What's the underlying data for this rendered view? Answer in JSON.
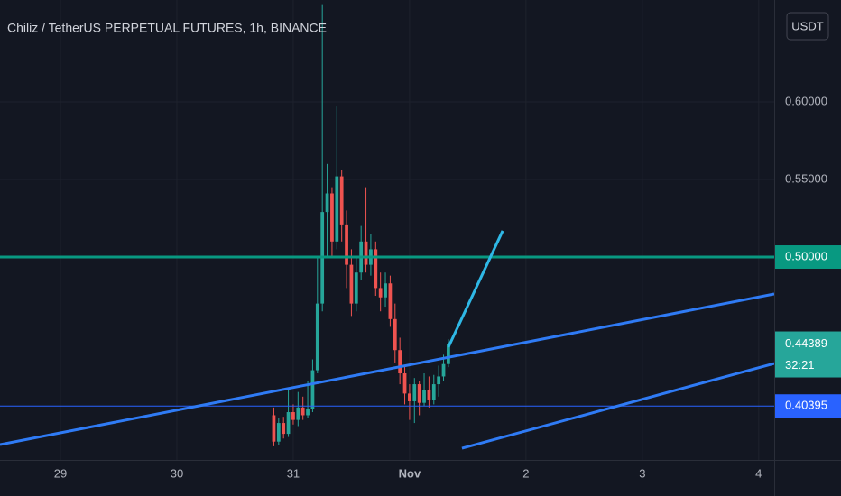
{
  "chart_data": {
    "type": "candlestick",
    "title": "Chiliz / TetherUS PERPETUAL FUTURES, 1h, BINANCE",
    "currency": "USDT",
    "x": [
      44,
      45,
      46,
      47,
      48,
      49,
      50,
      51,
      52,
      53,
      54,
      55,
      56,
      57,
      58,
      59,
      60,
      61,
      62,
      63,
      64,
      65,
      66,
      67,
      68,
      69,
      70,
      71,
      72,
      73,
      74,
      75,
      76,
      77,
      78,
      79,
      80
    ],
    "open": [
      0.398,
      0.381,
      0.393,
      0.386,
      0.4,
      0.395,
      0.403,
      0.398,
      0.402,
      0.427,
      0.47,
      0.529,
      0.541,
      0.51,
      0.552,
      0.521,
      0.495,
      0.47,
      0.49,
      0.51,
      0.495,
      0.505,
      0.48,
      0.474,
      0.483,
      0.46,
      0.44,
      0.425,
      0.412,
      0.407,
      0.418,
      0.406,
      0.414,
      0.408,
      0.418,
      0.423,
      0.431
    ],
    "high": [
      0.403,
      0.396,
      0.397,
      0.415,
      0.405,
      0.413,
      0.41,
      0.42,
      0.434,
      0.5,
      0.663,
      0.56,
      0.545,
      0.597,
      0.556,
      0.53,
      0.505,
      0.5,
      0.52,
      0.545,
      0.515,
      0.51,
      0.49,
      0.49,
      0.488,
      0.47,
      0.448,
      0.43,
      0.418,
      0.422,
      0.42,
      0.425,
      0.423,
      0.424,
      0.43,
      0.437,
      0.447
    ],
    "low": [
      0.378,
      0.379,
      0.383,
      0.384,
      0.392,
      0.391,
      0.395,
      0.396,
      0.4,
      0.425,
      0.465,
      0.5,
      0.5,
      0.505,
      0.51,
      0.48,
      0.462,
      0.465,
      0.485,
      0.49,
      0.488,
      0.475,
      0.465,
      0.468,
      0.455,
      0.432,
      0.418,
      0.405,
      0.395,
      0.393,
      0.398,
      0.404,
      0.403,
      0.405,
      0.41,
      0.42,
      0.429
    ],
    "close": [
      0.381,
      0.393,
      0.386,
      0.4,
      0.395,
      0.403,
      0.398,
      0.402,
      0.427,
      0.47,
      0.529,
      0.541,
      0.51,
      0.552,
      0.521,
      0.495,
      0.47,
      0.49,
      0.51,
      0.495,
      0.505,
      0.48,
      0.474,
      0.483,
      0.46,
      0.44,
      0.425,
      0.412,
      0.407,
      0.418,
      0.406,
      0.414,
      0.408,
      0.418,
      0.423,
      0.431,
      0.44389
    ],
    "up_color": "#26a69a",
    "down_color": "#ef5350",
    "xlim": [
      -12.47,
      147.2
    ],
    "xticks": [
      {
        "value": 0,
        "label": "29"
      },
      {
        "value": 24,
        "label": "30"
      },
      {
        "value": 48,
        "label": "31"
      },
      {
        "value": 72,
        "label": "Nov"
      },
      {
        "value": 96,
        "label": "2"
      },
      {
        "value": 120,
        "label": "3"
      },
      {
        "value": 144,
        "label": "4"
      }
    ],
    "ylim": [
      0.3692,
      0.6657
    ],
    "yticks": [
      {
        "value": 0.55,
        "label": "0.55000"
      },
      {
        "value": 0.6,
        "label": "0.60000"
      }
    ],
    "levels": [
      {
        "value": 0.5,
        "label": "0.50000",
        "color": "#089981",
        "width": 3
      },
      {
        "value": 0.40395,
        "label": "0.40395",
        "color": "#2962ff",
        "width": 1
      }
    ],
    "last_price": {
      "value": 0.44389,
      "label": "0.44389",
      "countdown": "32:21",
      "color": "#26a69a"
    },
    "trendlines": [
      {
        "x": [
          -12.47,
          147.2
        ],
        "values": [
          0.3791,
          0.4762
        ],
        "color": "#2f7bf5"
      },
      {
        "x": [
          82.8,
          147.2
        ],
        "values": [
          0.3767,
          0.4314
        ],
        "color": "#2f7bf5"
      },
      {
        "x": [
          80,
          91.2
        ],
        "values": [
          0.4419,
          0.5169
        ],
        "color": "#2fb8e6"
      }
    ]
  }
}
